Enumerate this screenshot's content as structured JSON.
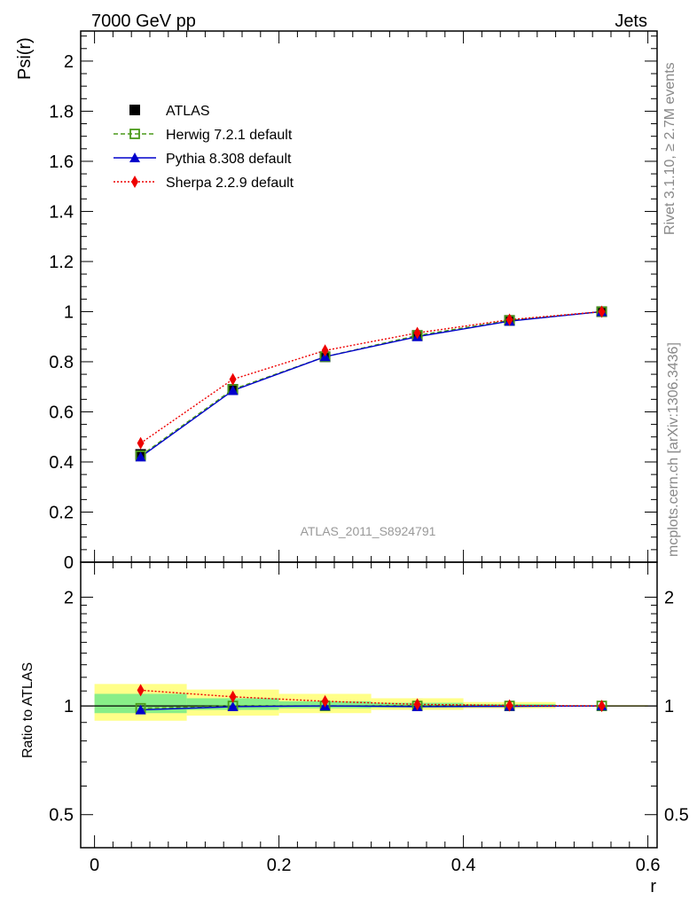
{
  "header": {
    "left": "7000 GeV pp",
    "right": "Jets"
  },
  "side_text": {
    "top": "Rivet 3.1.10, ≥ 2.7M events",
    "bottom": "mcplots.cern.ch [arXiv:1306.3436]"
  },
  "watermark": "ATLAS_2011_S8924791",
  "colors": {
    "data": "#000000",
    "herwig": "#4a9a1a",
    "pythia": "#0000cc",
    "sherpa": "#ee0000",
    "band_inner": "#88ee88",
    "band_outer": "#ffff88"
  },
  "chart_data": [
    {
      "type": "line",
      "ylabel": "Psi(r)",
      "xlim": [
        -0.015,
        0.61
      ],
      "ylim": [
        0,
        2.12
      ],
      "xticks": [
        "0",
        "0.2",
        "0.4",
        "0.6"
      ],
      "yticks": [
        "0",
        "0.2",
        "0.4",
        "0.6",
        "0.8",
        "1",
        "1.2",
        "1.4",
        "1.6",
        "1.8",
        "2"
      ],
      "x": [
        0.05,
        0.15,
        0.25,
        0.35,
        0.45,
        0.55
      ],
      "x_edges": [
        0.0,
        0.1,
        0.2,
        0.3,
        0.4,
        0.5,
        0.6
      ],
      "series": [
        {
          "name": "ATLAS",
          "key": "data",
          "values": [
            0.43,
            0.69,
            0.82,
            0.905,
            0.965,
            1.0
          ]
        },
        {
          "name": "Herwig 7.2.1 default",
          "key": "herwig",
          "values": [
            0.425,
            0.69,
            0.82,
            0.905,
            0.965,
            1.0
          ]
        },
        {
          "name": "Pythia 8.308 default",
          "key": "pythia",
          "values": [
            0.42,
            0.685,
            0.82,
            0.9,
            0.962,
            1.0
          ]
        },
        {
          "name": "Sherpa 2.2.9 default",
          "key": "sherpa",
          "values": [
            0.475,
            0.73,
            0.845,
            0.915,
            0.968,
            1.0
          ]
        }
      ],
      "legend_position": "top-left"
    },
    {
      "type": "line",
      "ylabel": "Ratio to ATLAS",
      "xlabel": "r",
      "scale": "log",
      "ylim": [
        0.405,
        2.5
      ],
      "yticks": [
        "0.5",
        "1",
        "2"
      ],
      "ytick_values": [
        0.5,
        1,
        2
      ],
      "x": [
        0.05,
        0.15,
        0.25,
        0.35,
        0.45,
        0.55
      ],
      "bands": {
        "inner": [
          [
            0.955,
            1.08
          ],
          [
            0.975,
            1.05
          ],
          [
            0.985,
            1.03
          ],
          [
            0.99,
            1.02
          ],
          [
            0.995,
            1.012
          ],
          [
            0.998,
            1.002
          ]
        ],
        "outer": [
          [
            0.91,
            1.15
          ],
          [
            0.94,
            1.11
          ],
          [
            0.955,
            1.08
          ],
          [
            0.975,
            1.05
          ],
          [
            0.985,
            1.025
          ],
          [
            0.995,
            1.005
          ]
        ]
      },
      "series": [
        {
          "name": "Herwig 7.2.1 default",
          "key": "herwig",
          "values": [
            0.985,
            1.0,
            1.0,
            1.0,
            1.0,
            1.0
          ]
        },
        {
          "name": "Pythia 8.308 default",
          "key": "pythia",
          "values": [
            0.975,
            0.995,
            1.0,
            0.995,
            0.997,
            1.0
          ]
        },
        {
          "name": "Sherpa 2.2.9 default",
          "key": "sherpa",
          "values": [
            1.105,
            1.06,
            1.03,
            1.01,
            1.003,
            1.0
          ]
        }
      ]
    }
  ]
}
